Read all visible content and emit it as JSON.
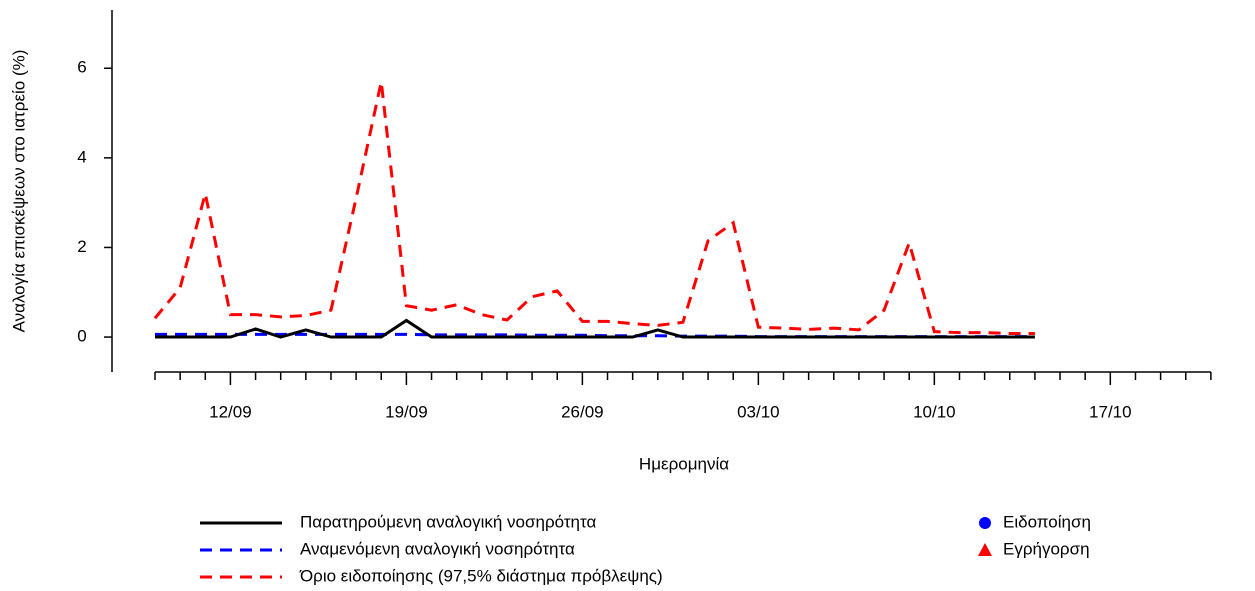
{
  "chart_data": {
    "type": "line",
    "y_label": "Αναλογία επισκέψεων στο ιατρείο (%)",
    "x_label": "Ημερομηνία",
    "categories": [
      null,
      null,
      null,
      "12/09",
      null,
      null,
      null,
      null,
      null,
      null,
      "19/09",
      null,
      null,
      null,
      null,
      null,
      null,
      "26/09",
      null,
      null,
      null,
      null,
      null,
      null,
      "03/10",
      null,
      null,
      null,
      null,
      null,
      null,
      "10/10",
      null,
      null,
      null,
      null,
      null,
      null,
      "17/10",
      null,
      null,
      null,
      null
    ],
    "series": [
      {
        "name": "Παρατηρούμενη αναλογική νοσηρότητα",
        "color": "#000000",
        "dash": false,
        "values": [
          0,
          0,
          0,
          0,
          0.18,
          0,
          0.16,
          0,
          0,
          0,
          0.37,
          0,
          0,
          0,
          0,
          0,
          0,
          0,
          0,
          0,
          0.16,
          0,
          0,
          0,
          0,
          0,
          0,
          0,
          0,
          0,
          0,
          0,
          0,
          0,
          0,
          0,
          null,
          null,
          null,
          null,
          null,
          null,
          null
        ]
      },
      {
        "name": "Αναμενόμενη αναλογική νοσηρότητα",
        "color": "#0000ff",
        "dash": true,
        "values": [
          0.06,
          0.06,
          0.06,
          0.06,
          0.06,
          0.06,
          0.06,
          0.06,
          0.06,
          0.06,
          0.06,
          0.05,
          0.05,
          0.05,
          0.05,
          0.04,
          0.04,
          0.04,
          0.03,
          0.03,
          0.03,
          0.02,
          0.02,
          0.02,
          0.01,
          0.01,
          0.01,
          0.01,
          0.01,
          0.01,
          0.01,
          0.01,
          0.01,
          0.01,
          0.01,
          0.01,
          null,
          null,
          null,
          null,
          null,
          null,
          null
        ]
      },
      {
        "name": "Όριο ειδοποίησης (97,5% διάστημα πρόβλεψης)",
        "color": "#ff0000",
        "dash": true,
        "values": [
          0.42,
          1.1,
          3.2,
          0.5,
          0.5,
          0.45,
          0.48,
          0.6,
          3.1,
          5.7,
          0.7,
          0.6,
          0.72,
          0.5,
          0.38,
          0.9,
          1.03,
          0.35,
          0.35,
          0.3,
          0.26,
          0.33,
          2.15,
          2.55,
          0.22,
          0.2,
          0.17,
          0.2,
          0.16,
          0.6,
          2.1,
          0.12,
          0.1,
          0.1,
          0.08,
          0.08,
          null,
          null,
          null,
          null,
          null,
          null,
          null
        ]
      }
    ],
    "markers": [
      {
        "name": "Ειδοποίηση",
        "color": "#0000ff",
        "shape": "circle"
      },
      {
        "name": "Εγρήγορση",
        "color": "#ff0000",
        "shape": "triangle"
      }
    ],
    "ylim": [
      -0.78,
      7.3
    ],
    "yticks": [
      0,
      2,
      4,
      6
    ]
  }
}
